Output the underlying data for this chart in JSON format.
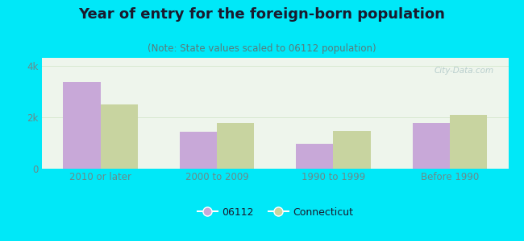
{
  "title": "Year of entry for the foreign-born population",
  "subtitle": "(Note: State values scaled to 06112 population)",
  "categories": [
    "2010 or later",
    "2000 to 2009",
    "1990 to 1999",
    "Before 1990"
  ],
  "values_06112": [
    3350,
    1430,
    980,
    1780
  ],
  "values_ct": [
    2480,
    1780,
    1470,
    2080
  ],
  "color_06112": "#c8a8d8",
  "color_ct": "#c8d4a0",
  "background_outer": "#00e8f8",
  "background_inner_top": "#f5f8f0",
  "background_inner": "#eaf2e8",
  "ylim": [
    0,
    4300
  ],
  "yticks": [
    0,
    2000,
    4000
  ],
  "ytick_labels": [
    "0",
    "2k",
    "4k"
  ],
  "legend_label_06112": "06112",
  "legend_label_ct": "Connecticut",
  "bar_width": 0.32,
  "grid_color": "#d8e8d0",
  "title_fontsize": 13,
  "subtitle_fontsize": 8.5,
  "axis_tick_fontsize": 8.5,
  "legend_fontsize": 9,
  "title_color": "#1a1a2e",
  "subtitle_color": "#5a7a7a",
  "tick_color": "#6a8a8a"
}
